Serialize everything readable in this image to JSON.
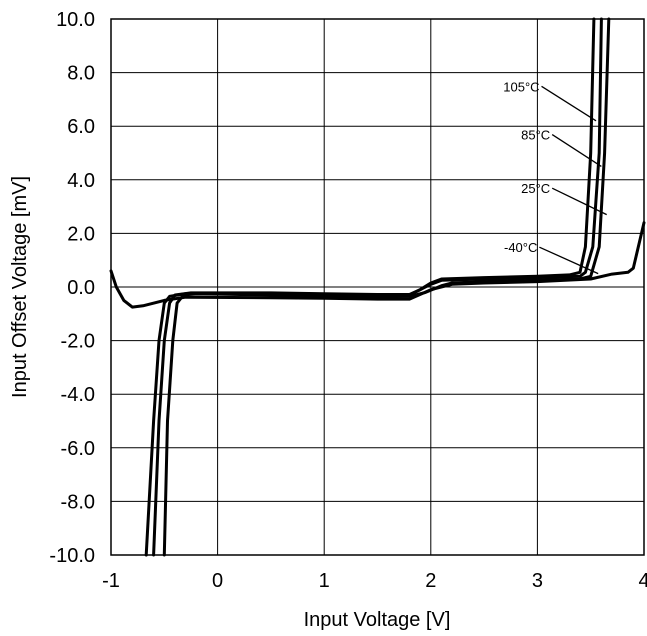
{
  "chart_data": {
    "type": "line",
    "title": "",
    "xlabel": "Input Voltage [V]",
    "ylabel": "Input Offset Voltage [mV]",
    "xlim": [
      -1,
      4
    ],
    "ylim": [
      -10,
      10
    ],
    "x_ticks": [
      -1,
      0,
      1,
      2,
      3,
      4
    ],
    "x_tick_labels": [
      "-1",
      "0",
      "1",
      "2",
      "3",
      "4"
    ],
    "y_ticks": [
      -10,
      -8,
      -6,
      -4,
      -2,
      0,
      2,
      4,
      6,
      8,
      10
    ],
    "y_tick_labels": [
      "-10.0",
      "-8.0",
      "-6.0",
      "-4.0",
      "-2.0",
      "0.0",
      "2.0",
      "4.0",
      "6.0",
      "8.0",
      "10.0"
    ],
    "grid": true,
    "legend": "inline-labels",
    "series": [
      {
        "name": "105°C",
        "label_anchor": [
          3.55,
          6.2
        ],
        "points": [
          [
            -0.67,
            -10
          ],
          [
            -0.6,
            -5
          ],
          [
            -0.55,
            -2
          ],
          [
            -0.5,
            -0.6
          ],
          [
            -0.45,
            -0.35
          ],
          [
            -0.3,
            -0.25
          ],
          [
            0.5,
            -0.25
          ],
          [
            1.0,
            -0.28
          ],
          [
            1.5,
            -0.3
          ],
          [
            1.8,
            -0.3
          ],
          [
            1.9,
            -0.1
          ],
          [
            2.0,
            0.15
          ],
          [
            2.1,
            0.3
          ],
          [
            2.5,
            0.35
          ],
          [
            3.0,
            0.4
          ],
          [
            3.3,
            0.45
          ],
          [
            3.4,
            0.55
          ],
          [
            3.45,
            1.5
          ],
          [
            3.5,
            5
          ],
          [
            3.53,
            10
          ]
        ]
      },
      {
        "name": "85°C",
        "label_anchor": [
          3.6,
          4.5
        ],
        "points": [
          [
            -0.6,
            -10
          ],
          [
            -0.55,
            -5
          ],
          [
            -0.5,
            -2
          ],
          [
            -0.45,
            -0.6
          ],
          [
            -0.4,
            -0.3
          ],
          [
            -0.25,
            -0.22
          ],
          [
            0.5,
            -0.22
          ],
          [
            1.0,
            -0.25
          ],
          [
            1.5,
            -0.28
          ],
          [
            1.8,
            -0.28
          ],
          [
            1.9,
            -0.1
          ],
          [
            2.0,
            0.1
          ],
          [
            2.1,
            0.25
          ],
          [
            2.5,
            0.3
          ],
          [
            3.0,
            0.35
          ],
          [
            3.4,
            0.4
          ],
          [
            3.45,
            0.55
          ],
          [
            3.52,
            1.5
          ],
          [
            3.58,
            5
          ],
          [
            3.6,
            10
          ]
        ]
      },
      {
        "name": "25°C",
        "label_anchor": [
          3.65,
          2.7
        ],
        "points": [
          [
            -0.5,
            -10
          ],
          [
            -0.47,
            -5
          ],
          [
            -0.42,
            -2
          ],
          [
            -0.38,
            -0.6
          ],
          [
            -0.32,
            -0.3
          ],
          [
            -0.2,
            -0.25
          ],
          [
            0.5,
            -0.3
          ],
          [
            1.0,
            -0.33
          ],
          [
            1.5,
            -0.36
          ],
          [
            1.8,
            -0.35
          ],
          [
            1.95,
            -0.2
          ],
          [
            2.1,
            0.05
          ],
          [
            2.2,
            0.15
          ],
          [
            2.5,
            0.2
          ],
          [
            3.0,
            0.25
          ],
          [
            3.4,
            0.3
          ],
          [
            3.5,
            0.4
          ],
          [
            3.58,
            1.5
          ],
          [
            3.63,
            5
          ],
          [
            3.67,
            10
          ]
        ]
      },
      {
        "name": "-40°C",
        "label_anchor": [
          3.57,
          0.5
        ],
        "points": [
          [
            -1.0,
            0.6
          ],
          [
            -0.95,
            0.0
          ],
          [
            -0.88,
            -0.5
          ],
          [
            -0.8,
            -0.75
          ],
          [
            -0.7,
            -0.7
          ],
          [
            -0.5,
            -0.5
          ],
          [
            -0.3,
            -0.38
          ],
          [
            0.5,
            -0.4
          ],
          [
            1.0,
            -0.42
          ],
          [
            1.5,
            -0.45
          ],
          [
            1.8,
            -0.45
          ],
          [
            2.0,
            -0.1
          ],
          [
            2.2,
            0.1
          ],
          [
            2.5,
            0.15
          ],
          [
            3.0,
            0.2
          ],
          [
            3.5,
            0.3
          ],
          [
            3.7,
            0.48
          ],
          [
            3.85,
            0.55
          ],
          [
            3.9,
            0.7
          ],
          [
            4.0,
            2.4
          ]
        ]
      }
    ],
    "series_label_positions": [
      {
        "name": "105°C",
        "text_at": [
          3.02,
          7.3
        ]
      },
      {
        "name": "85°C",
        "text_at": [
          3.12,
          5.5
        ]
      },
      {
        "name": "25°C",
        "text_at": [
          3.12,
          3.5
        ]
      },
      {
        "name": "-40°C",
        "text_at": [
          3.0,
          1.3
        ]
      }
    ]
  }
}
